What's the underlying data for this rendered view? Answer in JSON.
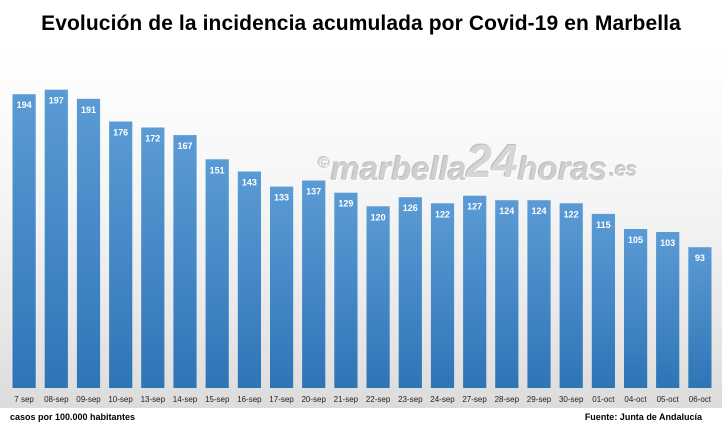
{
  "chart_data": {
    "type": "bar",
    "title": "Evolución de la incidencia acumulada por Covid-19 en Marbella",
    "ylabel": "casos por 100.000 habitantes",
    "source": "Fuente: Junta de Andalucía",
    "categories": [
      "7 sep",
      "08-sep",
      "09-sep",
      "10-sep",
      "13-sep",
      "14-sep",
      "15-sep",
      "16-sep",
      "17-sep",
      "20-sep",
      "21-sep",
      "22-sep",
      "23-sep",
      "24-sep",
      "27-sep",
      "28-sep",
      "29-sep",
      "30-sep",
      "01-oct",
      "04-oct",
      "05-oct",
      "06-oct"
    ],
    "values": [
      194,
      197,
      191,
      176,
      172,
      167,
      151,
      143,
      133,
      137,
      129,
      120,
      126,
      122,
      127,
      124,
      124,
      122,
      115,
      105,
      103,
      93
    ],
    "ylim": [
      0,
      210
    ],
    "grid": false,
    "legend": "none",
    "bar_color_top": "#5b9bd5",
    "bar_color_bottom": "#2e75b6"
  },
  "watermark": {
    "copyright": "©",
    "name": "marbella",
    "number": "24",
    "suffix": "horas",
    "tld": ".es"
  }
}
